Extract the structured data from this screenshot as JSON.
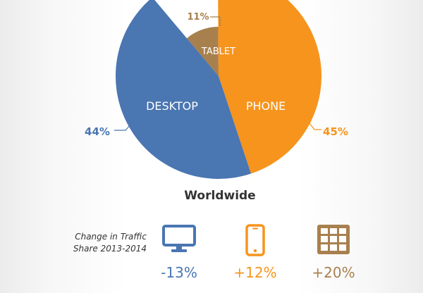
{
  "chart_data": {
    "type": "pie",
    "slices": [
      {
        "label": "TABLET",
        "value": 11,
        "pct_label": "11%",
        "color": "#a8804e"
      },
      {
        "label": "PHONE",
        "value": 45,
        "pct_label": "45%",
        "color": "#f7941d"
      },
      {
        "label": "DESKTOP",
        "value": 44,
        "pct_label": "44%",
        "color": "#4a76b2"
      }
    ],
    "title": "Worldwide"
  },
  "change": {
    "note_line1": "Change in Traffic",
    "note_line2": "Share 2013-2014",
    "items": [
      {
        "device": "desktop",
        "icon": "monitor-icon",
        "value": "-13%",
        "color": "#4a76b2"
      },
      {
        "device": "phone",
        "icon": "smartphone-icon",
        "value": "+12%",
        "color": "#f7941d"
      },
      {
        "device": "tablet",
        "icon": "tablet-grid-icon",
        "value": "+20%",
        "color": "#a8804e"
      }
    ]
  }
}
